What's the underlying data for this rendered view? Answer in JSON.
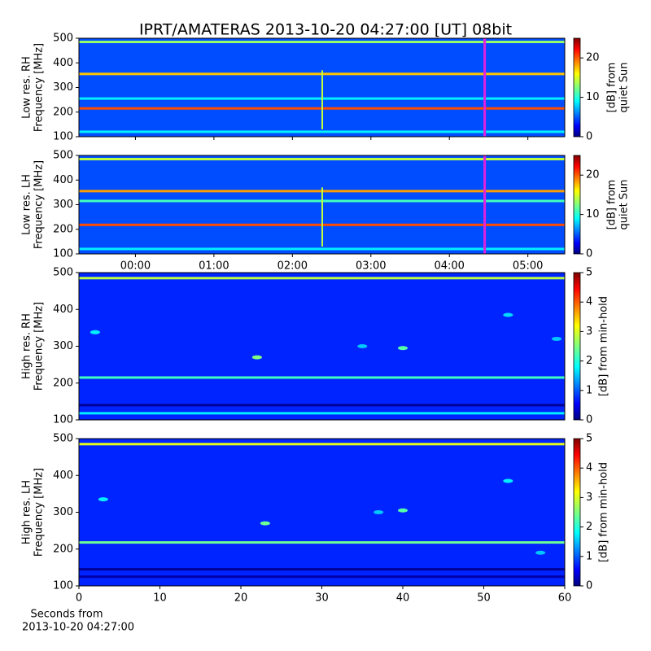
{
  "chart_data": [
    {
      "type": "heatmap",
      "title": "IPRT/AMATERAS 2013-10-20 04:27:00 [UT]   08bit",
      "ylabel": [
        "Low res. RH",
        "Frequency [MHz]"
      ],
      "xlim": [
        -0.72,
        5.47
      ],
      "ylim": [
        100,
        500
      ],
      "yticks": [
        100,
        200,
        300,
        400,
        500
      ],
      "clim": [
        0,
        25
      ],
      "cticks": [
        0,
        10,
        20
      ],
      "clabel": [
        "[dB] from",
        "quiet Sun"
      ],
      "background": 5,
      "rows": [
        {
          "y": 485,
          "value": 13
        },
        {
          "y": 355,
          "value": 17
        },
        {
          "y": 255,
          "value": 9
        },
        {
          "y": 215,
          "value": 20
        },
        {
          "y": 120,
          "value": 9
        }
      ],
      "spikes": [
        {
          "x": 2.38,
          "ylo": 130,
          "yhi": 370,
          "value": 14
        }
      ],
      "vline": 4.45,
      "vline_color": "#e020e0"
    },
    {
      "type": "heatmap",
      "ylabel": [
        "Low res. LH",
        "Frequency [MHz]"
      ],
      "xlim": [
        -0.72,
        5.47
      ],
      "ylim": [
        100,
        500
      ],
      "yticks": [
        100,
        200,
        300,
        400,
        500
      ],
      "xticks": [
        {
          "value": 0,
          "label": "00:00"
        },
        {
          "value": 1,
          "label": "01:00"
        },
        {
          "value": 2,
          "label": "02:00"
        },
        {
          "value": 3,
          "label": "03:00"
        },
        {
          "value": 4,
          "label": "04:00"
        },
        {
          "value": 5,
          "label": "05:00"
        }
      ],
      "clim": [
        0,
        25
      ],
      "cticks": [
        0,
        10,
        20
      ],
      "clabel": [
        "[dB] from",
        "quiet Sun"
      ],
      "background": 5,
      "rows": [
        {
          "y": 485,
          "value": 14
        },
        {
          "y": 355,
          "value": 18
        },
        {
          "y": 315,
          "value": 11
        },
        {
          "y": 218,
          "value": 20
        },
        {
          "y": 120,
          "value": 9
        }
      ],
      "spikes": [
        {
          "x": 2.38,
          "ylo": 130,
          "yhi": 370,
          "value": 14
        }
      ],
      "vline": 4.45,
      "vline_color": "#e020e0"
    },
    {
      "type": "heatmap",
      "ylabel": [
        "High res. RH",
        "Frequency [MHz]"
      ],
      "xlim": [
        0,
        60
      ],
      "ylim": [
        100,
        500
      ],
      "yticks": [
        100,
        200,
        300,
        400,
        500
      ],
      "clim": [
        0,
        5
      ],
      "cticks": [
        0,
        1,
        2,
        3,
        4,
        5
      ],
      "clabel": [
        "[dB] from min-hold"
      ],
      "background": 0.8,
      "rows": [
        {
          "y": 485,
          "value": 2.8
        },
        {
          "y": 215,
          "value": 2.2
        },
        {
          "y": 140,
          "value": 0.1
        },
        {
          "y": 118,
          "value": 1.8
        }
      ],
      "spots": [
        {
          "x": 2,
          "y": 338,
          "value": 1.8
        },
        {
          "x": 22,
          "y": 270,
          "value": 2.5
        },
        {
          "x": 35,
          "y": 300,
          "value": 1.6
        },
        {
          "x": 40,
          "y": 295,
          "value": 2.3
        },
        {
          "x": 53,
          "y": 385,
          "value": 1.7
        },
        {
          "x": 59,
          "y": 320,
          "value": 1.6
        }
      ]
    },
    {
      "type": "heatmap",
      "ylabel": [
        "High res. LH",
        "Frequency [MHz]"
      ],
      "xlim": [
        0,
        60
      ],
      "ylim": [
        100,
        500
      ],
      "yticks": [
        100,
        200,
        300,
        400,
        500
      ],
      "xticks": [
        0,
        10,
        20,
        30,
        40,
        50,
        60
      ],
      "xlabel": [
        "Seconds from",
        "2013-10-20 04:27:00"
      ],
      "clim": [
        0,
        5
      ],
      "cticks": [
        0,
        1,
        2,
        3,
        4,
        5
      ],
      "clabel": [
        "[dB] from min-hold"
      ],
      "background": 0.8,
      "rows": [
        {
          "y": 485,
          "value": 3
        },
        {
          "y": 218,
          "value": 2.4
        },
        {
          "y": 145,
          "value": 0.1
        },
        {
          "y": 125,
          "value": 0.2
        }
      ],
      "spots": [
        {
          "x": 3,
          "y": 335,
          "value": 1.8
        },
        {
          "x": 23,
          "y": 270,
          "value": 2.4
        },
        {
          "x": 37,
          "y": 300,
          "value": 1.6
        },
        {
          "x": 40,
          "y": 305,
          "value": 2.3
        },
        {
          "x": 53,
          "y": 385,
          "value": 1.8
        },
        {
          "x": 57,
          "y": 190,
          "value": 1.6
        }
      ]
    }
  ]
}
